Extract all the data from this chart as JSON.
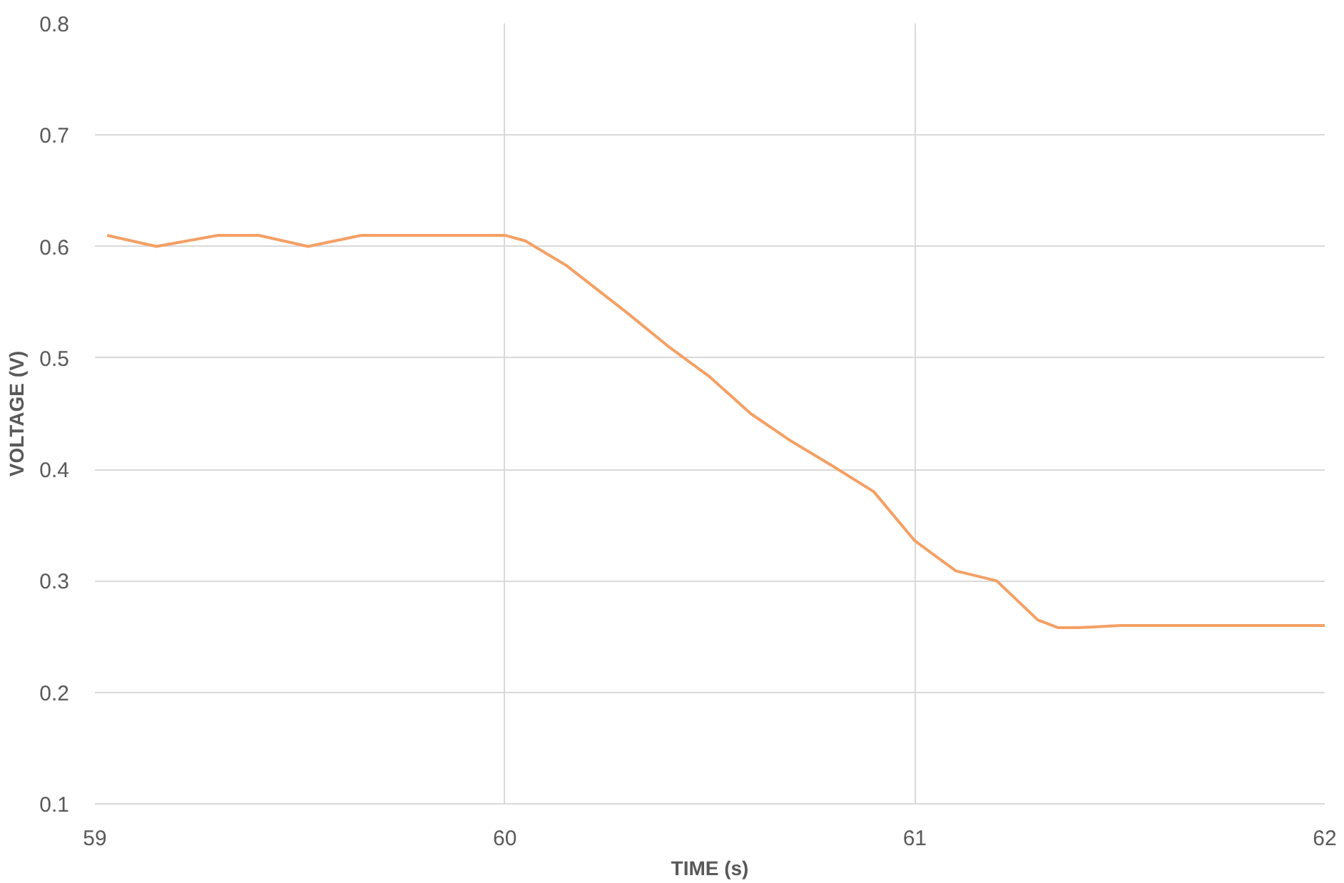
{
  "chart_data": {
    "type": "line",
    "xlabel": "TIME (s)",
    "ylabel": "VOLTAGE (V)",
    "xlim": [
      59,
      62
    ],
    "xticks": [
      59,
      60,
      61,
      62
    ],
    "ylim": [
      0.1,
      0.8
    ],
    "yticks": [
      0.1,
      0.2,
      0.3,
      0.4,
      0.5,
      0.6,
      0.7,
      0.8
    ],
    "grid": true,
    "series": [
      {
        "color": "#f4a064",
        "x": [
          59.03,
          59.15,
          59.3,
          59.4,
          59.52,
          59.65,
          59.8,
          60.0,
          60.05,
          60.15,
          60.3,
          60.4,
          60.5,
          60.6,
          60.7,
          60.8,
          60.9,
          61.0,
          61.1,
          61.2,
          61.3,
          61.35,
          61.4,
          61.5,
          62.0
        ],
        "values": [
          0.61,
          0.6,
          0.61,
          0.61,
          0.6,
          0.61,
          0.61,
          0.61,
          0.605,
          0.583,
          0.54,
          0.51,
          0.483,
          0.45,
          0.425,
          0.403,
          0.38,
          0.336,
          0.309,
          0.3,
          0.265,
          0.258,
          0.258,
          0.26,
          0.26
        ]
      }
    ]
  }
}
